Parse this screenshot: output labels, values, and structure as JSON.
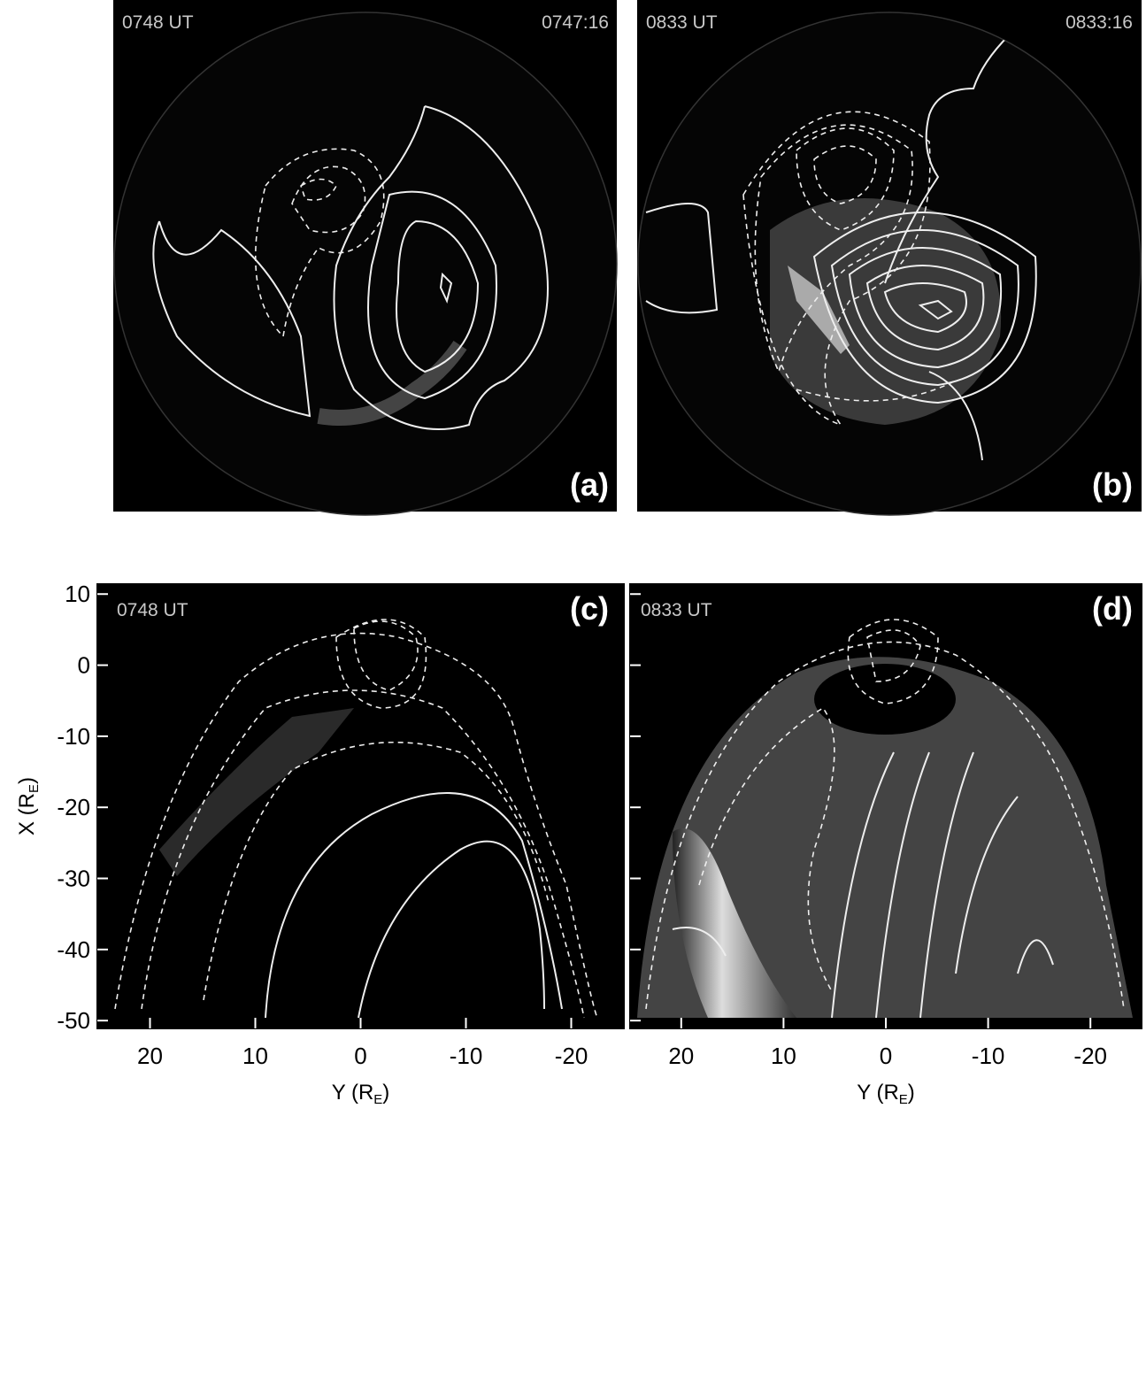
{
  "panels": [
    {
      "time": "0748 UT",
      "time_right": "0747:16",
      "label": "(a)"
    },
    {
      "time": "0833 UT",
      "time_right": "0833:16",
      "label": "(b)"
    }
  ],
  "plots": [
    {
      "time": "0748 UT",
      "label": "(c)",
      "xlim": [
        25,
        -25
      ],
      "xticks": [
        20,
        10,
        0,
        -10,
        -20
      ],
      "ylim": [
        11.4,
        -51.1
      ],
      "yticks": [
        10,
        0,
        -10,
        -20,
        -30,
        -40,
        -50
      ],
      "xlabel": {
        "main": "Y (R",
        "sub": "E",
        "close": ")"
      },
      "ylabel": {
        "main": "X (R",
        "sub": "E",
        "close": ")"
      }
    },
    {
      "time": "0833 UT",
      "label": "(d)",
      "xlim": [
        25,
        -25
      ],
      "xticks": [
        20,
        10,
        0,
        -10,
        -20
      ],
      "xlabel": {
        "main": "Y (R",
        "sub": "E",
        "close": ")"
      }
    }
  ]
}
